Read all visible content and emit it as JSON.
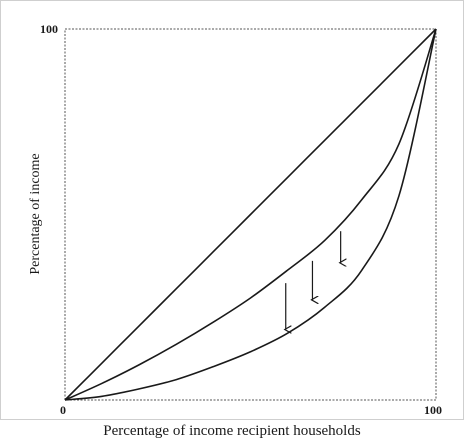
{
  "chart_data": {
    "type": "line",
    "title": "",
    "xlabel": "Percentage of income recipient households",
    "ylabel": "Percentage of income",
    "xlim": [
      0,
      100
    ],
    "ylim": [
      0,
      100
    ],
    "x_tick_labels": [
      {
        "value": 0,
        "label": "0"
      },
      {
        "value": 100,
        "label": "100"
      }
    ],
    "y_tick_labels": [
      {
        "value": 100,
        "label": "100"
      }
    ],
    "grid": false,
    "legend": "none",
    "series": [
      {
        "x": [
          0,
          10,
          20,
          30,
          40,
          50,
          60,
          70,
          80,
          90,
          100
        ],
        "y": [
          0,
          10,
          20,
          30,
          40,
          50,
          60,
          70,
          80,
          90,
          100
        ]
      },
      {
        "x": [
          0,
          10,
          20,
          30,
          40,
          50,
          60,
          70,
          80,
          90,
          100
        ],
        "y": [
          0,
          4.5,
          9.5,
          15,
          21,
          27.5,
          35,
          43,
          54,
          69,
          100
        ]
      },
      {
        "x": [
          0,
          10,
          20,
          30,
          40,
          50,
          60,
          70,
          80,
          90,
          100
        ],
        "y": [
          0,
          1,
          3,
          5.5,
          9,
          13,
          18,
          25,
          35,
          55,
          100
        ]
      }
    ],
    "arrows": [
      {
        "x": 59.5,
        "y_from": 31.5,
        "y_to": 19
      },
      {
        "x": 66.7,
        "y_from": 37.5,
        "y_to": 27
      },
      {
        "x": 74.3,
        "y_from": 45.5,
        "y_to": 37
      }
    ],
    "line_color": "#1a1a1a",
    "axis_color": "#555555"
  }
}
